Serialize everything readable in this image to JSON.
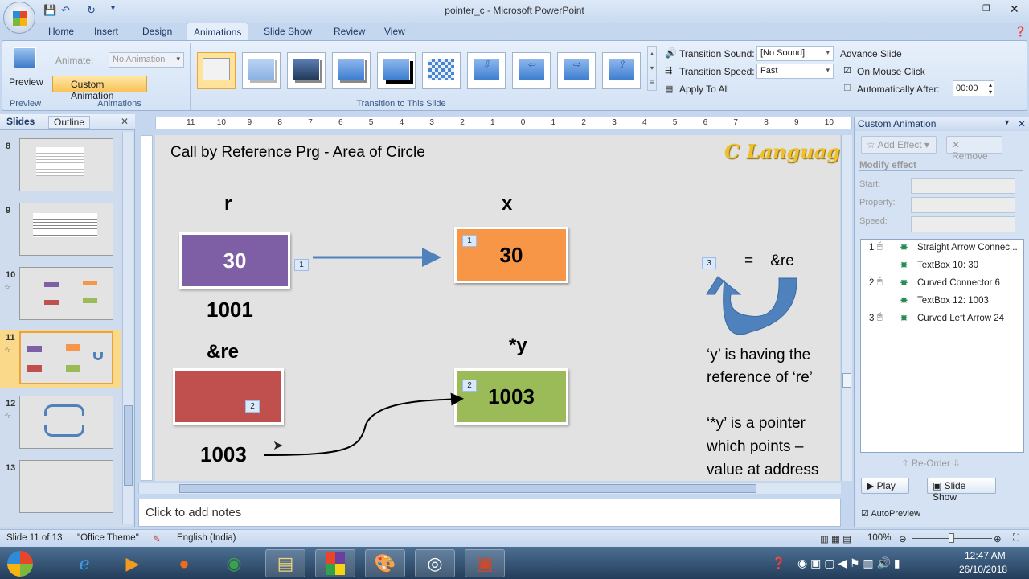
{
  "window": {
    "title": "pointer_c - Microsoft PowerPoint"
  },
  "tabs": [
    "Home",
    "Insert",
    "Design",
    "Animations",
    "Slide Show",
    "Review",
    "View"
  ],
  "active_tab": "Animations",
  "ribbon": {
    "preview_label": "Preview",
    "preview_group": "Preview",
    "animate_label": "Animate:",
    "animate_value": "No Animation",
    "custom_animation_label": "Custom Animation",
    "animations_group": "Animations",
    "transition_group": "Transition to This Slide",
    "transition_sound_label": "Transition Sound:",
    "transition_sound_value": "[No Sound]",
    "transition_speed_label": "Transition Speed:",
    "transition_speed_value": "Fast",
    "apply_to_all": "Apply To All",
    "advance_slide_label": "Advance Slide",
    "on_mouse_click_label": "On Mouse Click",
    "on_mouse_click_checked": true,
    "auto_after_label": "Automatically After:",
    "auto_after_checked": false,
    "auto_after_value": "00:00"
  },
  "left_pane": {
    "tabs": [
      "Slides",
      "Outline"
    ],
    "slides": [
      "8",
      "9",
      "10",
      "11",
      "12",
      "13"
    ],
    "selected": "11"
  },
  "ruler": [
    "11",
    "10",
    "9",
    "8",
    "7",
    "6",
    "5",
    "4",
    "3",
    "2",
    "1",
    "0",
    "1",
    "2",
    "3",
    "4",
    "5",
    "6",
    "7",
    "8",
    "9",
    "10"
  ],
  "slide": {
    "title": "Call by Reference  Prg - Area of Circle",
    "logo": "C Language",
    "r_label": "r",
    "r_value": "30",
    "r_address": "1001",
    "x_label": "x",
    "x_value": "30",
    "re_label": "&re",
    "re_address": "1003",
    "y_label": "*y",
    "y_value": "1003",
    "eq_text": "=    &re",
    "note1": "‘y’ is having the reference of ‘re’",
    "note2": "‘*y’ is a pointer which points – value at address",
    "tags": [
      "1",
      "1",
      "2",
      "2",
      "3"
    ],
    "colors": {
      "purple": "#7e5fa5",
      "orange": "#f79646",
      "red": "#c0504d",
      "green": "#9bbb59",
      "arrow": "#4f81bd"
    }
  },
  "notes_placeholder": "Click to add notes",
  "custom_animation": {
    "title": "Custom Animation",
    "add_effect": "Add Effect",
    "remove": "Remove",
    "modify_effect": "Modify effect",
    "start_label": "Start:",
    "property_label": "Property:",
    "speed_label": "Speed:",
    "items": [
      {
        "num": "1",
        "name": "Straight Arrow Connec..."
      },
      {
        "num": "",
        "name": "TextBox 10: 30"
      },
      {
        "num": "2",
        "name": "Curved Connector 6"
      },
      {
        "num": "",
        "name": "TextBox 12: 1003"
      },
      {
        "num": "3",
        "name": "Curved Left Arrow 24"
      }
    ],
    "reorder": "Re-Order",
    "play": "Play",
    "slide_show": "Slide Show",
    "autopreview": "AutoPreview",
    "autopreview_checked": true
  },
  "status": {
    "slide": "Slide 11 of 13",
    "theme": "\"Office Theme\"",
    "language": "English (India)",
    "zoom": "100%"
  },
  "taskbar": {
    "time": "12:47 AM",
    "date": "26/10/2018"
  }
}
